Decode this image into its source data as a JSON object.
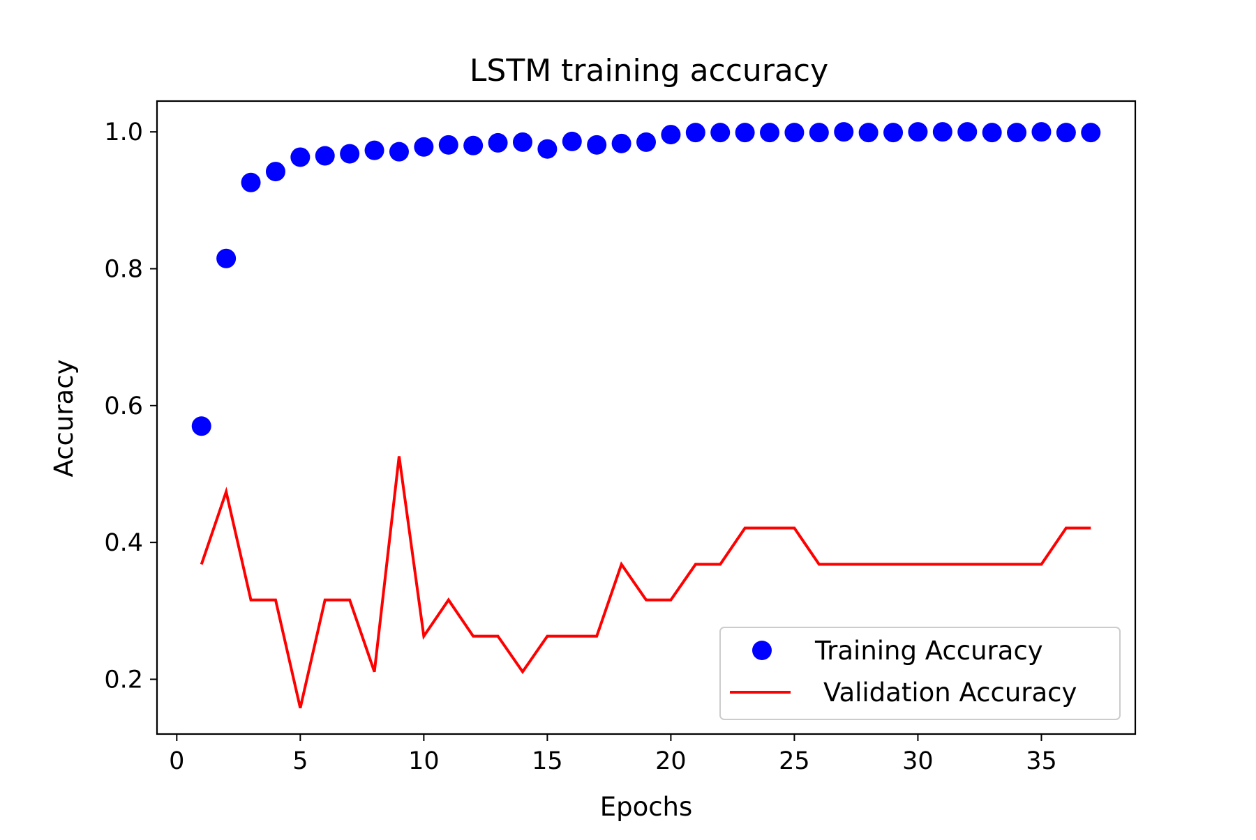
{
  "chart_data": {
    "type": "line",
    "title": "LSTM training accuracy",
    "xlabel": "Epochs",
    "ylabel": "Accuracy",
    "xlim": [
      -0.8,
      38.8
    ],
    "ylim": [
      0.12,
      1.045
    ],
    "x_ticks": [
      0,
      5,
      10,
      15,
      20,
      25,
      30,
      35
    ],
    "x_tick_labels": [
      "0",
      "5",
      "10",
      "15",
      "20",
      "25",
      "30",
      "35"
    ],
    "y_ticks": [
      0.2,
      0.4,
      0.6,
      0.8,
      1.0
    ],
    "y_tick_labels": [
      "0.2",
      "0.4",
      "0.6",
      "0.8",
      "1.0"
    ],
    "grid": false,
    "legend_position": "bottom-right",
    "x": [
      1,
      2,
      3,
      4,
      5,
      6,
      7,
      8,
      9,
      10,
      11,
      12,
      13,
      14,
      15,
      16,
      17,
      18,
      19,
      20,
      21,
      22,
      23,
      24,
      25,
      26,
      27,
      28,
      29,
      30,
      31,
      32,
      33,
      34,
      35,
      36,
      37
    ],
    "series": [
      {
        "name": "Training Accuracy",
        "style": "scatter",
        "color": "#0000ff",
        "values": [
          0.57,
          0.815,
          0.926,
          0.942,
          0.963,
          0.965,
          0.968,
          0.973,
          0.971,
          0.978,
          0.981,
          0.98,
          0.984,
          0.985,
          0.975,
          0.986,
          0.981,
          0.983,
          0.985,
          0.996,
          0.999,
          0.999,
          0.999,
          0.999,
          0.999,
          0.999,
          1.0,
          0.999,
          0.999,
          1.0,
          1.0,
          1.0,
          0.999,
          0.999,
          1.0,
          0.999,
          0.999
        ]
      },
      {
        "name": "Validation Accuracy",
        "style": "line",
        "color": "#ff0000",
        "values": [
          0.368,
          0.474,
          0.316,
          0.316,
          0.158,
          0.316,
          0.316,
          0.211,
          0.526,
          0.263,
          0.316,
          0.263,
          0.263,
          0.211,
          0.263,
          0.263,
          0.263,
          0.368,
          0.316,
          0.316,
          0.368,
          0.368,
          0.421,
          0.421,
          0.421,
          0.368,
          0.368,
          0.368,
          0.368,
          0.368,
          0.368,
          0.368,
          0.368,
          0.368,
          0.368,
          0.421,
          0.421
        ]
      }
    ]
  }
}
